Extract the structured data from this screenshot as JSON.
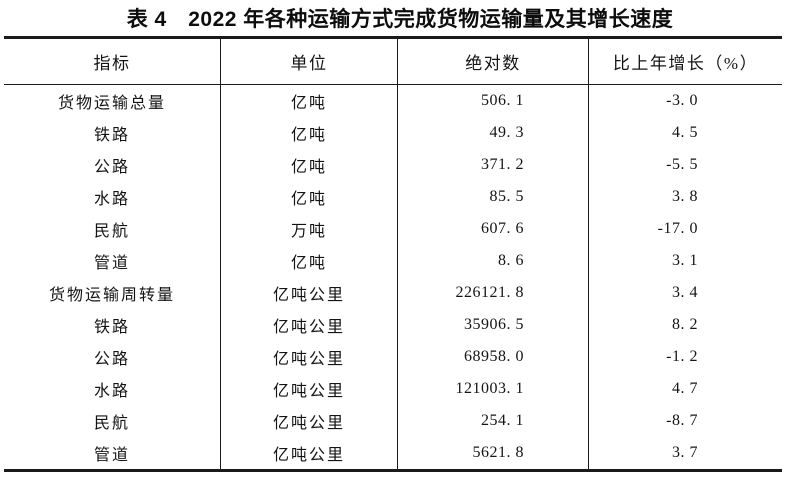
{
  "page": {
    "background": "#ffffff",
    "text_color": "#141414",
    "rule_color": "#1a1a1a"
  },
  "title": "表 4　2022 年各种运输方式完成货物运输量及其增长速度",
  "table": {
    "headers": {
      "indicator": "指标",
      "unit": "单位",
      "absolute": "绝对数",
      "growth": "比上年增长（%）"
    },
    "rows": [
      {
        "indicator": "货物运输总量",
        "unit": "亿吨",
        "absolute": "506. 1",
        "growth": "-3. 0"
      },
      {
        "indicator": "铁路",
        "unit": "亿吨",
        "absolute": "49. 3",
        "growth": "4. 5"
      },
      {
        "indicator": "公路",
        "unit": "亿吨",
        "absolute": "371. 2",
        "growth": "-5. 5"
      },
      {
        "indicator": "水路",
        "unit": "亿吨",
        "absolute": "85. 5",
        "growth": "3. 8"
      },
      {
        "indicator": "民航",
        "unit": "万吨",
        "absolute": "607. 6",
        "growth": "-17. 0"
      },
      {
        "indicator": "管道",
        "unit": "亿吨",
        "absolute": "8. 6",
        "growth": "3. 1"
      },
      {
        "indicator": "货物运输周转量",
        "unit": "亿吨公里",
        "absolute": "226121. 8",
        "growth": "3. 4"
      },
      {
        "indicator": "铁路",
        "unit": "亿吨公里",
        "absolute": "35906. 5",
        "growth": "8. 2"
      },
      {
        "indicator": "公路",
        "unit": "亿吨公里",
        "absolute": "68958. 0",
        "growth": "-1. 2"
      },
      {
        "indicator": "水路",
        "unit": "亿吨公里",
        "absolute": "121003. 1",
        "growth": "4. 7"
      },
      {
        "indicator": "民航",
        "unit": "亿吨公里",
        "absolute": "254. 1",
        "growth": "-8. 7"
      },
      {
        "indicator": "管道",
        "unit": "亿吨公里",
        "absolute": "5621. 8",
        "growth": "3. 7"
      }
    ]
  }
}
